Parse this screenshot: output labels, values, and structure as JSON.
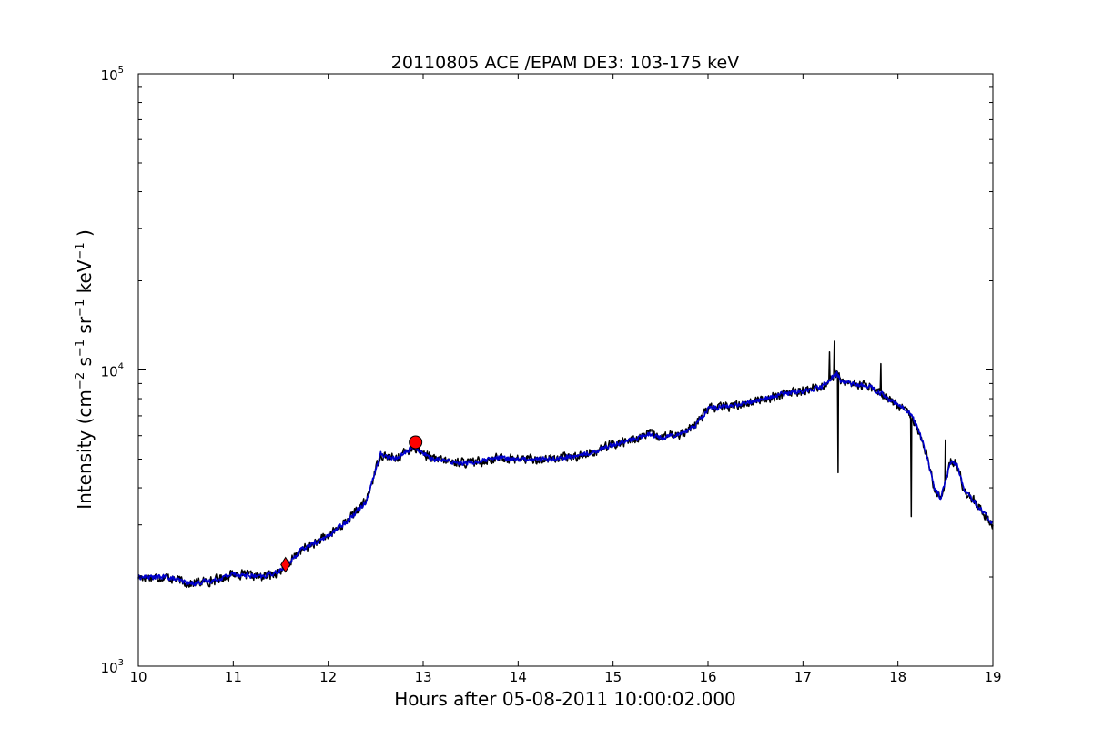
{
  "chart_data": {
    "type": "line",
    "title": "20110805 ACE /EPAM DE3: 103-175 keV",
    "xlabel": "Hours after 05-08-2011 10:00:02.000",
    "ylabel": {
      "parts": [
        "Intensity (cm",
        "−2",
        " s",
        "−1",
        " sr",
        "−1",
        " keV",
        "−1",
        " )"
      ]
    },
    "xlim": [
      10,
      19
    ],
    "ylim": [
      1000,
      100000
    ],
    "yscale": "log",
    "grid": false,
    "legend": "none",
    "x_ticks": [
      {
        "value": 10,
        "label": "10"
      },
      {
        "value": 11,
        "label": "11"
      },
      {
        "value": 12,
        "label": "12"
      },
      {
        "value": 13,
        "label": "13"
      },
      {
        "value": 14,
        "label": "14"
      },
      {
        "value": 15,
        "label": "15"
      },
      {
        "value": 16,
        "label": "16"
      },
      {
        "value": 17,
        "label": "17"
      },
      {
        "value": 18,
        "label": "18"
      },
      {
        "value": 19,
        "label": "19"
      }
    ],
    "y_ticks": [
      {
        "value": 1000,
        "base": "10",
        "exp": "3"
      },
      {
        "value": 10000,
        "base": "10",
        "exp": "4"
      },
      {
        "value": 100000,
        "base": "10",
        "exp": "5"
      }
    ],
    "series": [
      {
        "color": "#000000",
        "noise": 0.05,
        "x": [
          10.0,
          10.3,
          10.55,
          10.8,
          11.0,
          11.3,
          11.5,
          11.6,
          11.7,
          11.8,
          12.0,
          12.2,
          12.4,
          12.55,
          12.7,
          12.9,
          13.1,
          13.3,
          13.5,
          13.8,
          14.0,
          14.3,
          14.6,
          14.8,
          15.0,
          15.2,
          15.4,
          15.5,
          15.7,
          15.85,
          16.0,
          16.3,
          16.6,
          16.8,
          17.0,
          17.2,
          17.3,
          17.36,
          17.4,
          17.5,
          17.7,
          17.85,
          18.0,
          18.12,
          18.2,
          18.3,
          18.38,
          18.45,
          18.5,
          18.55,
          18.62,
          18.7,
          18.8,
          18.9,
          19.0
        ],
        "y": [
          2000,
          2000,
          1900,
          1950,
          2050,
          2000,
          2100,
          2250,
          2450,
          2550,
          2750,
          3100,
          3600,
          5200,
          5000,
          5500,
          5000,
          4900,
          4850,
          5050,
          5000,
          5000,
          5100,
          5300,
          5600,
          5800,
          6100,
          5900,
          6100,
          6400,
          7400,
          7600,
          8000,
          8300,
          8500,
          8800,
          9400,
          9700,
          9200,
          9000,
          8800,
          8200,
          7600,
          7200,
          6500,
          5200,
          4000,
          3700,
          4200,
          4900,
          4800,
          3900,
          3600,
          3300,
          3000
        ],
        "spikes": [
          {
            "x": 17.28,
            "y": 11500
          },
          {
            "x": 17.33,
            "y": 12500
          },
          {
            "x": 17.37,
            "y": 4500
          },
          {
            "x": 17.82,
            "y": 10500
          },
          {
            "x": 18.14,
            "y": 3200
          },
          {
            "x": 18.5,
            "y": 5800
          }
        ]
      },
      {
        "color": "#0000cc",
        "noise": 0.025,
        "x": [
          10.0,
          10.3,
          10.55,
          10.8,
          11.0,
          11.3,
          11.5,
          11.6,
          11.7,
          11.8,
          12.0,
          12.2,
          12.4,
          12.55,
          12.7,
          12.9,
          13.1,
          13.3,
          13.5,
          13.8,
          14.0,
          14.3,
          14.6,
          14.8,
          15.0,
          15.2,
          15.4,
          15.5,
          15.7,
          15.85,
          16.0,
          16.3,
          16.6,
          16.8,
          17.0,
          17.2,
          17.3,
          17.36,
          17.4,
          17.5,
          17.7,
          17.85,
          18.0,
          18.12,
          18.2,
          18.3,
          18.38,
          18.45,
          18.5,
          18.55,
          18.62,
          18.7,
          18.8,
          18.9,
          19.0
        ],
        "y": [
          2000,
          2000,
          1900,
          1950,
          2050,
          2000,
          2100,
          2250,
          2450,
          2550,
          2750,
          3100,
          3600,
          5200,
          5000,
          5500,
          5000,
          4900,
          4850,
          5050,
          5000,
          5000,
          5100,
          5300,
          5600,
          5800,
          6100,
          5900,
          6100,
          6400,
          7400,
          7600,
          8000,
          8300,
          8500,
          8800,
          9400,
          9700,
          9200,
          9000,
          8800,
          8200,
          7600,
          7200,
          6500,
          5200,
          4000,
          3700,
          4200,
          4900,
          4800,
          3900,
          3600,
          3300,
          3000
        ]
      }
    ],
    "markers": [
      {
        "type": "diamond",
        "x": 11.55,
        "y": 2200,
        "color": "#ff0000"
      },
      {
        "type": "circle",
        "x": 12.92,
        "y": 5700,
        "color": "#ff0000"
      }
    ]
  }
}
